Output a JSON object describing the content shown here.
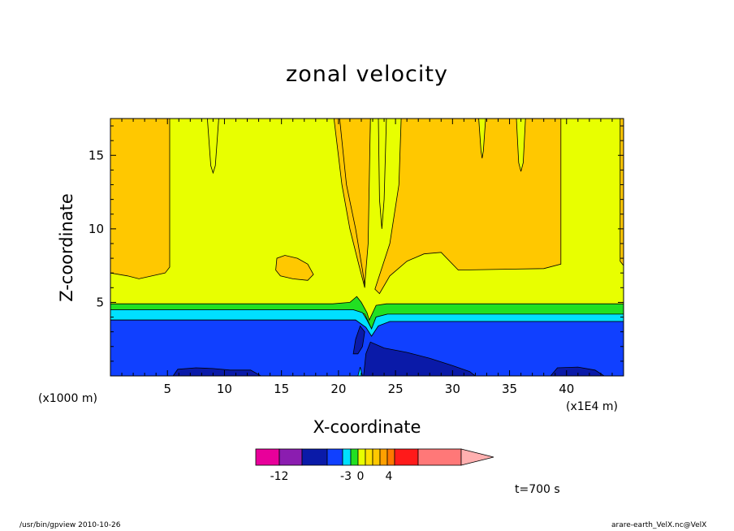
{
  "chart_data": {
    "type": "contour",
    "title": "zonal velocity",
    "xlabel": "X-coordinate",
    "ylabel": "Z-coordinate",
    "x_unit_note": "(x1000 m)",
    "x_unit_note_right": "(x1E4 m)",
    "xlim": [
      0,
      45
    ],
    "ylim": [
      0,
      17.5
    ],
    "x_ticks": [
      "5",
      "10",
      "15",
      "20",
      "25",
      "30",
      "35",
      "40"
    ],
    "y_ticks": [
      "5",
      "10",
      "15"
    ],
    "colorbar": {
      "colors": [
        "#e8009a",
        "#8b1db0",
        "#0a1aa8",
        "#1040ff",
        "#00e0ff",
        "#22e022",
        "#e8ff00",
        "#ffe000",
        "#ffc800",
        "#ffa000",
        "#ff7800",
        "#ff1a1a",
        "#ff7878",
        "#ffb0b0"
      ],
      "tick_labels": [
        "-12",
        "-3",
        "0",
        "4"
      ]
    },
    "regions": [
      {
        "level": "lower-deep",
        "color": "#0a1aa8"
      },
      {
        "level": "lower",
        "color": "#1040ff"
      },
      {
        "level": "transition-1",
        "color": "#00e0ff"
      },
      {
        "level": "transition-2",
        "color": "#22e022"
      },
      {
        "level": "mid",
        "color": "#e8ff00"
      },
      {
        "level": "upper",
        "color": "#ffc800"
      }
    ]
  },
  "annotations": {
    "time": "t=700 s",
    "footer_left": "/usr/bin/gpview   2010-10-26",
    "footer_right": "arare-earth_VelX.nc@VelX"
  }
}
